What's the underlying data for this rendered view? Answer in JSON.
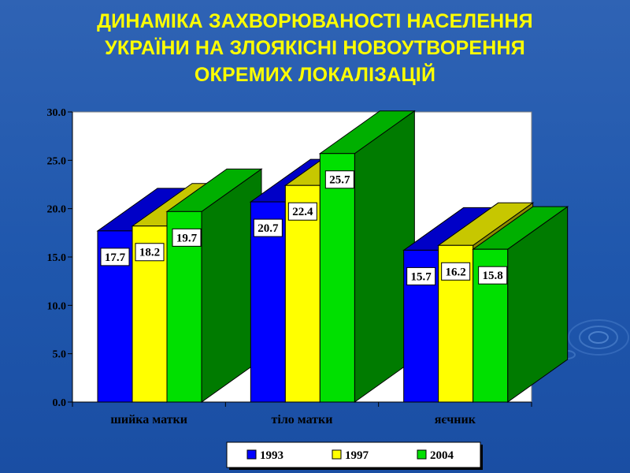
{
  "slide": {
    "title": "ДИНАМІКА ЗАХВОРЮВАНОСТІ НАСЕЛЕННЯ\nУКРАЇНИ НА ЗЛОЯКІСНІ НОВОУТВОРЕННЯ\nОКРЕМИХ ЛОКАЛІЗАЦІЙ",
    "background_color": "#2158ac",
    "title_color": "#ffff00"
  },
  "chart_data": {
    "type": "bar",
    "title": "ДИНАМІКА ЗАХВОРЮВАНОСТІ НАСЕЛЕННЯ УКРАЇНИ НА ЗЛОЯКІСНІ НОВОУТВОРЕННЯ ОКРЕМИХ ЛОКАЛІЗАЦІЙ",
    "style": "3d-clustered",
    "categories": [
      "шийка матки",
      "тіло матки",
      "яєчник"
    ],
    "series": [
      {
        "name": "1993",
        "values": [
          17.7,
          20.7,
          15.7
        ],
        "color": "#0000ff"
      },
      {
        "name": "1997",
        "values": [
          18.2,
          22.4,
          16.2
        ],
        "color": "#ffff00"
      },
      {
        "name": "2004",
        "values": [
          19.7,
          25.7,
          15.8
        ],
        "color": "#00e000"
      }
    ],
    "ylim": [
      0,
      30
    ],
    "yticks": [
      "0.0",
      "5.0",
      "10.0",
      "15.0",
      "20.0",
      "25.0",
      "30.0"
    ],
    "xlabel": "",
    "ylabel": "",
    "grid": false,
    "legend_position": "bottom",
    "data_labels": true
  }
}
